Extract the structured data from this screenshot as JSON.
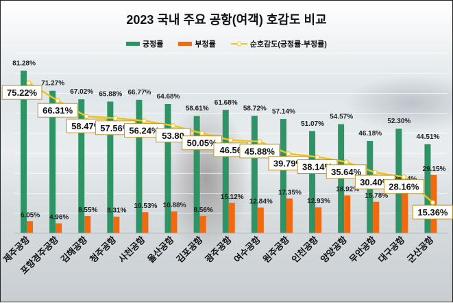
{
  "chart_data": {
    "type": "bar",
    "title": "2023 국내 주요 공항(여객) 호감도 비교",
    "categories": [
      "제주공항",
      "포항경주공항",
      "김해공항",
      "청주공항",
      "사천공항",
      "울산공항",
      "김포공항",
      "광주공항",
      "여수공항",
      "원주공항",
      "인천공항",
      "양양공항",
      "무안공항",
      "대구공항",
      "군산공항"
    ],
    "series": [
      {
        "name": "긍정률",
        "type": "bar",
        "color": "#2e9466",
        "values": [
          81.28,
          71.27,
          67.02,
          65.88,
          66.77,
          64.68,
          58.61,
          61.68,
          58.72,
          57.14,
          51.07,
          54.57,
          46.18,
          52.3,
          44.51
        ],
        "labels": [
          "81.28%",
          "71.27%",
          "67.02%",
          "65.88%",
          "66.77%",
          "64.68%",
          "58.61%",
          "61.68%",
          "58.72%",
          "57.14%",
          "51.07%",
          "54.57%",
          "46.18%",
          "52.30%",
          "44.51%"
        ]
      },
      {
        "name": "부정률",
        "type": "bar",
        "color": "#f26a10",
        "values": [
          6.05,
          4.96,
          8.55,
          8.31,
          10.53,
          10.88,
          8.56,
          15.12,
          12.84,
          17.35,
          12.93,
          18.92,
          15.78,
          24.14,
          29.15
        ],
        "labels": [
          "6.05%",
          "4.96%",
          "8.55%",
          "8.31%",
          "10.53%",
          "10.88%",
          "8.56%",
          "15.12%",
          "12.84%",
          "17.35%",
          "12.93%",
          "18.92%",
          "15.78%",
          "24.14%",
          "29.15%"
        ]
      },
      {
        "name": "순호감도(긍정률-부정률)",
        "type": "line",
        "color": "#f2c218",
        "values": [
          75.22,
          66.31,
          58.47,
          57.56,
          56.24,
          53.8,
          50.05,
          46.56,
          45.88,
          39.79,
          38.14,
          35.64,
          30.4,
          28.16,
          15.36
        ],
        "labels": [
          "75.22%",
          "66.31%",
          "58.47%",
          "57.56%",
          "56.24%",
          "53.80",
          "50.05%",
          "46.56",
          "45.88%",
          "39.79%",
          "38.14%",
          "35.64%",
          "30.40%",
          "28.16%",
          "15.36%"
        ]
      }
    ],
    "xlabel": "",
    "ylabel": "",
    "ylim": [
      0,
      90
    ],
    "grid": true,
    "legend_position": "top"
  }
}
